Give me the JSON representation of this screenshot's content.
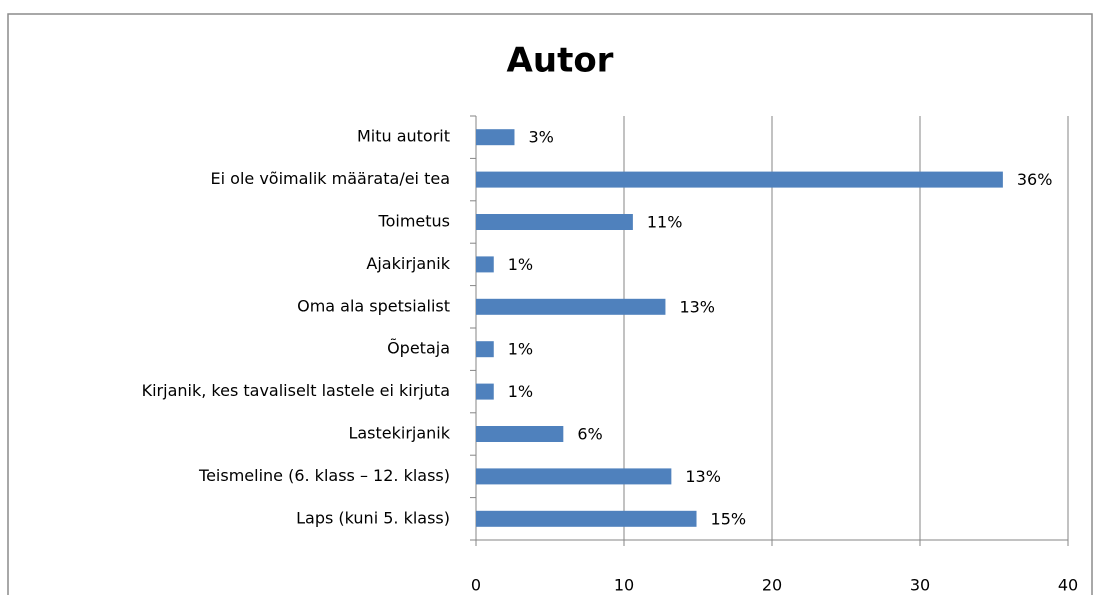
{
  "chart_data": {
    "type": "hbar",
    "title": "Autor",
    "categories": [
      "Mitu autorit",
      "Ei ole võimalik määrata/ei tea",
      "Toimetus",
      "Ajakirjanik",
      "Oma ala spetsialist",
      "Õpetaja",
      "Kirjanik, kes tavaliselt lastele ei kirjuta",
      "Lastekirjanik",
      "Teismeline (6. klass – 12. klass)",
      "Laps (kuni 5. klass)"
    ],
    "values": [
      2.6,
      35.6,
      10.6,
      1.2,
      12.8,
      1.2,
      1.2,
      5.9,
      13.2,
      14.9
    ],
    "value_labels": [
      "3%",
      "36%",
      "11%",
      "1%",
      "13%",
      "1%",
      "1%",
      "6%",
      "13%",
      "15%"
    ],
    "color": "#4f81bd",
    "xlim": [
      0,
      40
    ],
    "xticks": [
      0,
      10,
      20,
      30,
      40
    ],
    "grid": true
  }
}
